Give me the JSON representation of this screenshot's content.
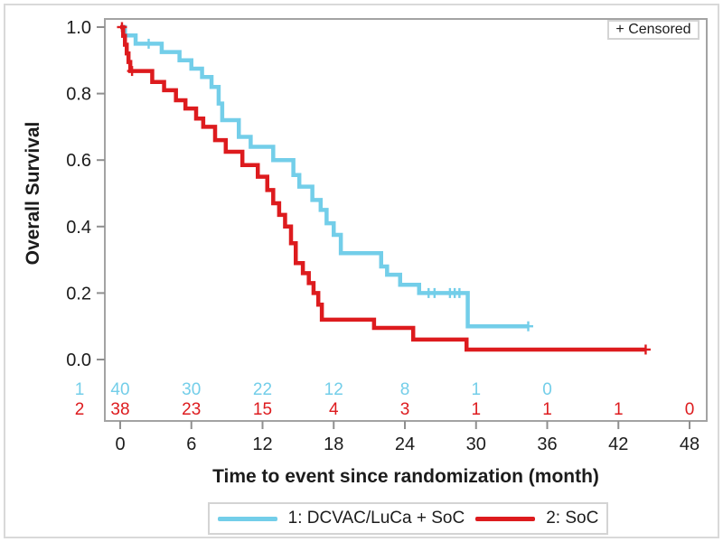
{
  "figure": {
    "frame_color": "#a3a3a3",
    "tick_color": "#8f8f8f",
    "text_color": "#1c1c1c",
    "background": "#ffffff",
    "outer_border_color": "#d9d9d9"
  },
  "censored_box": {
    "label": "+ Censored"
  },
  "legend": {
    "items": [
      {
        "label": "1: DCVAC/LuCa + SoC",
        "color": "#73CEE9"
      },
      {
        "label": "2: SoC",
        "color": "#DD1B1E"
      }
    ]
  },
  "chart_data": {
    "type": "line",
    "subtype": "kaplan-meier-step",
    "title": "",
    "xlabel": "Time to event since randomization (month)",
    "ylabel": "Overall Survival",
    "xlim": [
      0,
      48
    ],
    "ylim": [
      0.0,
      1.0
    ],
    "xticks": [
      0,
      6,
      12,
      18,
      24,
      30,
      36,
      42,
      48
    ],
    "yticks": [
      1.0,
      0.8,
      0.6,
      0.4,
      0.2,
      0.0
    ],
    "ytick_labels": [
      "1.0",
      "0.8",
      "0.6",
      "0.4",
      "0.2",
      "0.0"
    ],
    "grid": false,
    "legend_position": "bottom",
    "series": [
      {
        "name": "1: DCVAC/LuCa + SoC",
        "color": "#73CEE9",
        "steps": [
          [
            0,
            1.0
          ],
          [
            0.4,
            0.975
          ],
          [
            1.3,
            0.95
          ],
          [
            3.5,
            0.925
          ],
          [
            5.0,
            0.9
          ],
          [
            6.0,
            0.875
          ],
          [
            6.9,
            0.85
          ],
          [
            7.7,
            0.82
          ],
          [
            8.3,
            0.77
          ],
          [
            8.6,
            0.72
          ],
          [
            10.0,
            0.67
          ],
          [
            11.0,
            0.64
          ],
          [
            12.9,
            0.6
          ],
          [
            14.6,
            0.555
          ],
          [
            15.1,
            0.52
          ],
          [
            16.2,
            0.48
          ],
          [
            16.9,
            0.45
          ],
          [
            17.4,
            0.41
          ],
          [
            18.0,
            0.375
          ],
          [
            18.6,
            0.32
          ],
          [
            22.0,
            0.28
          ],
          [
            22.5,
            0.255
          ],
          [
            23.6,
            0.225
          ],
          [
            25.2,
            0.2
          ],
          [
            29.3,
            0.1
          ],
          [
            34.4,
            0.1
          ]
        ],
        "censor_marks": [
          [
            2.4,
            0.95
          ],
          [
            26.0,
            0.2
          ],
          [
            26.5,
            0.2
          ],
          [
            27.8,
            0.2
          ],
          [
            28.2,
            0.2
          ],
          [
            28.6,
            0.2
          ],
          [
            34.4,
            0.1
          ]
        ]
      },
      {
        "name": "2: SoC",
        "color": "#DD1B1E",
        "steps": [
          [
            0,
            1.0
          ],
          [
            0.25,
            0.974
          ],
          [
            0.4,
            0.947
          ],
          [
            0.55,
            0.921
          ],
          [
            0.7,
            0.895
          ],
          [
            0.85,
            0.868
          ],
          [
            2.7,
            0.835
          ],
          [
            3.7,
            0.81
          ],
          [
            4.7,
            0.78
          ],
          [
            5.5,
            0.755
          ],
          [
            6.4,
            0.725
          ],
          [
            7.0,
            0.7
          ],
          [
            8.0,
            0.66
          ],
          [
            8.9,
            0.625
          ],
          [
            10.3,
            0.585
          ],
          [
            11.6,
            0.55
          ],
          [
            12.4,
            0.51
          ],
          [
            12.9,
            0.47
          ],
          [
            13.4,
            0.435
          ],
          [
            13.9,
            0.4
          ],
          [
            14.4,
            0.35
          ],
          [
            14.8,
            0.29
          ],
          [
            15.4,
            0.26
          ],
          [
            15.9,
            0.23
          ],
          [
            16.3,
            0.2
          ],
          [
            16.7,
            0.165
          ],
          [
            17.0,
            0.12
          ],
          [
            21.4,
            0.095
          ],
          [
            24.7,
            0.06
          ],
          [
            29.2,
            0.03
          ],
          [
            44.3,
            0.03
          ]
        ],
        "censor_marks": [
          [
            0.15,
            1.0
          ],
          [
            1.0,
            0.868
          ],
          [
            44.3,
            0.03
          ]
        ]
      }
    ],
    "at_risk": {
      "row_labels": [
        "1",
        "2"
      ],
      "row_colors": [
        "#73CEE9",
        "#DD1B1E"
      ],
      "times": [
        0,
        6,
        12,
        18,
        24,
        30,
        36,
        42,
        48
      ],
      "rows": [
        [
          "40",
          "30",
          "22",
          "12",
          "8",
          "1",
          "0",
          "",
          ""
        ],
        [
          "38",
          "23",
          "15",
          "4",
          "3",
          "1",
          "1",
          "1",
          "0"
        ]
      ]
    }
  }
}
